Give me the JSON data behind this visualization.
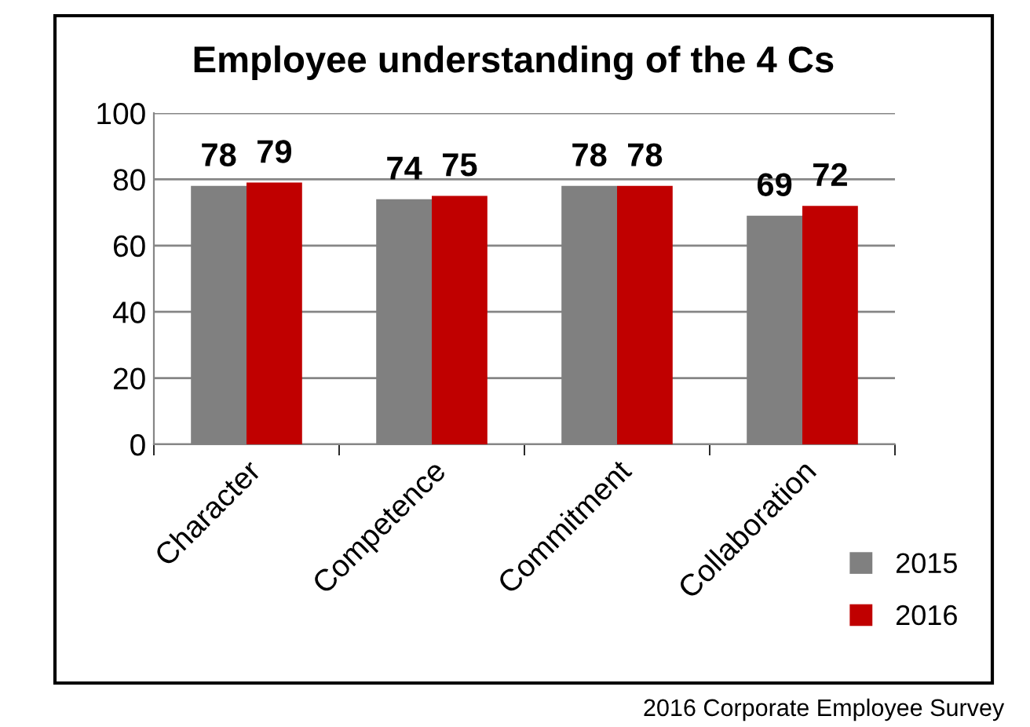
{
  "chart_data": {
    "type": "bar",
    "title": "Employee understanding of the 4 Cs",
    "categories": [
      "Character",
      "Competence",
      "Commitment",
      "Collaboration"
    ],
    "series": [
      {
        "name": "2015",
        "color": "#808080",
        "values": [
          78,
          74,
          78,
          69
        ]
      },
      {
        "name": "2016",
        "color": "#c00000",
        "values": [
          79,
          75,
          78,
          72
        ]
      }
    ],
    "ylim": [
      0,
      100
    ],
    "yticks": [
      0,
      20,
      40,
      60,
      80,
      100
    ],
    "grid": "y",
    "data_labels": true,
    "legend": "bottom right",
    "annotations": [
      "2016 Corporate Employee Survey"
    ]
  }
}
